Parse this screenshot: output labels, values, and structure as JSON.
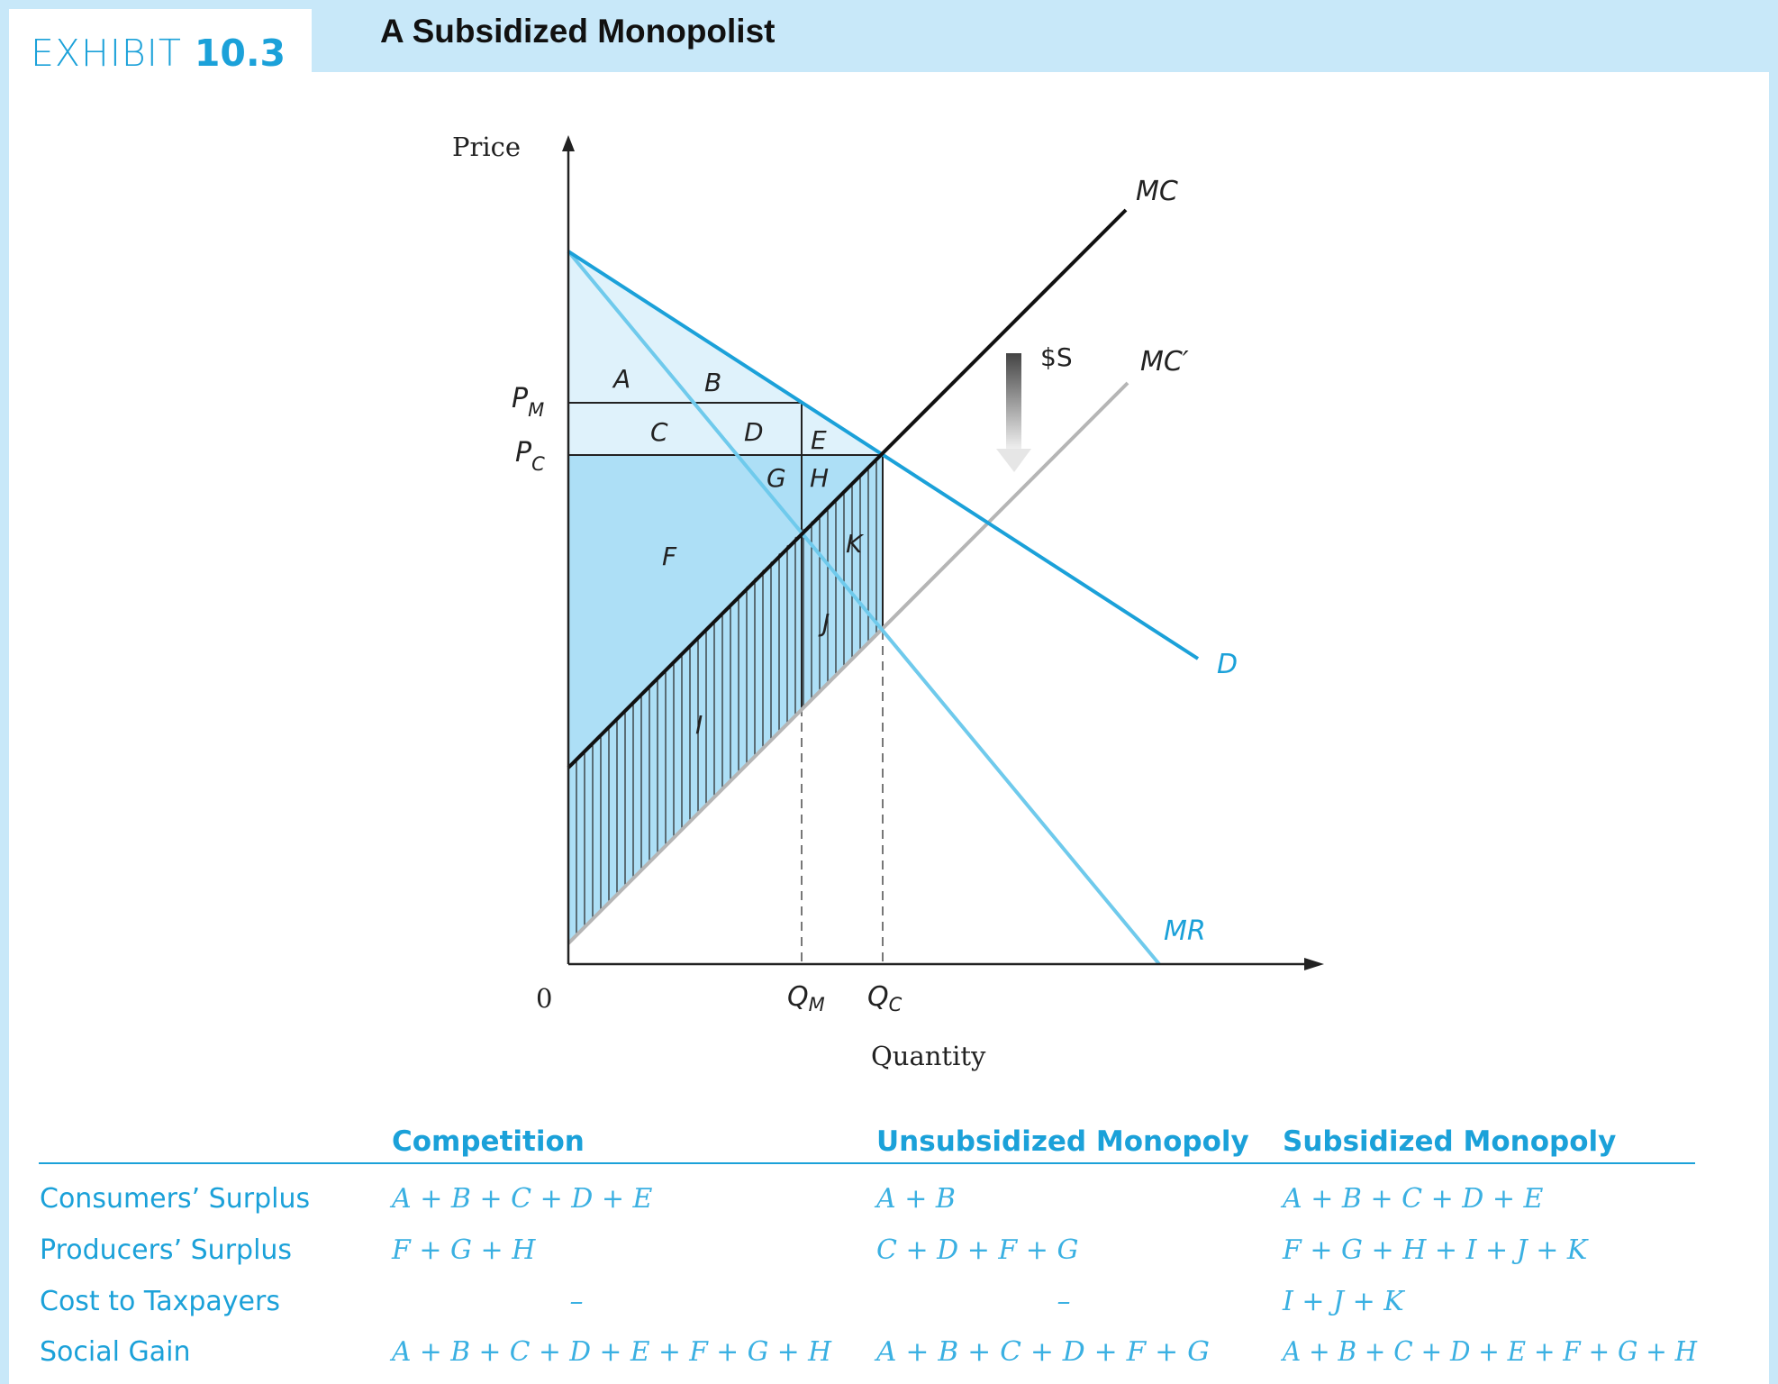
{
  "exhibit": {
    "word": "EXHIBIT",
    "number": "10.3"
  },
  "title": "A Subsidized Monopolist",
  "axes": {
    "y_label": "Price",
    "x_label": "Quantity",
    "origin": "0"
  },
  "price_labels": [
    {
      "main": "P",
      "sub": "M"
    },
    {
      "main": "P",
      "sub": "C"
    }
  ],
  "quantity_labels": [
    {
      "main": "Q",
      "sub": "M"
    },
    {
      "main": "Q",
      "sub": "C"
    }
  ],
  "curves": {
    "mc": "MC",
    "mc_prime": "MC′",
    "demand": "D",
    "mr": "MR",
    "subsidy": "$S"
  },
  "regions": [
    "A",
    "B",
    "C",
    "D",
    "E",
    "F",
    "G",
    "H",
    "I",
    "J",
    "K"
  ],
  "colors": {
    "accent": "#1ba1d9",
    "background": "#c8e8f9",
    "area_light": "#dff2fb",
    "area_medium": "#addff6",
    "mc_prime": "#b5b5b5"
  },
  "table": {
    "headers": [
      "Competition",
      "Unsubsidized Monopoly",
      "Subsidized Monopoly"
    ],
    "rows": [
      {
        "label": "Consumers’ Surplus",
        "values": [
          "A + B + C + D + E",
          "A + B",
          "A + B + C + D + E"
        ]
      },
      {
        "label": "Producers’ Surplus",
        "values": [
          "F + G + H",
          "C + D + F + G",
          "F + G + H + I + J + K"
        ]
      },
      {
        "label": "Cost to Taxpayers",
        "values": [
          "–",
          "–",
          "I + J + K"
        ]
      },
      {
        "label": "Social Gain",
        "values": [
          "A + B + C + D + E + F + G + H",
          "A + B + C + D + F + G",
          "A + B + C + D + E + F + G + H"
        ]
      }
    ]
  }
}
